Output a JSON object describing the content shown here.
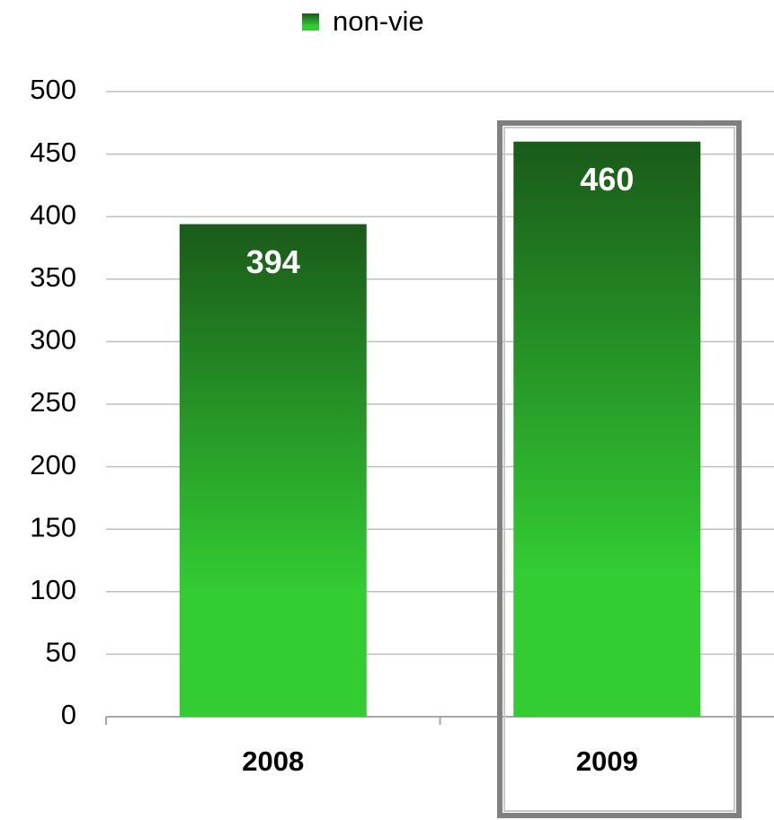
{
  "chart_data": {
    "type": "bar",
    "categories": [
      "2008",
      "2009"
    ],
    "series": [
      {
        "name": "non-vie",
        "color": "#33cc33",
        "values": [
          394,
          460
        ]
      }
    ],
    "ylim": [
      0,
      500
    ],
    "yticks": [
      0,
      50,
      100,
      150,
      200,
      250,
      300,
      350,
      400,
      450,
      500
    ],
    "grid": true,
    "legend": "top"
  }
}
